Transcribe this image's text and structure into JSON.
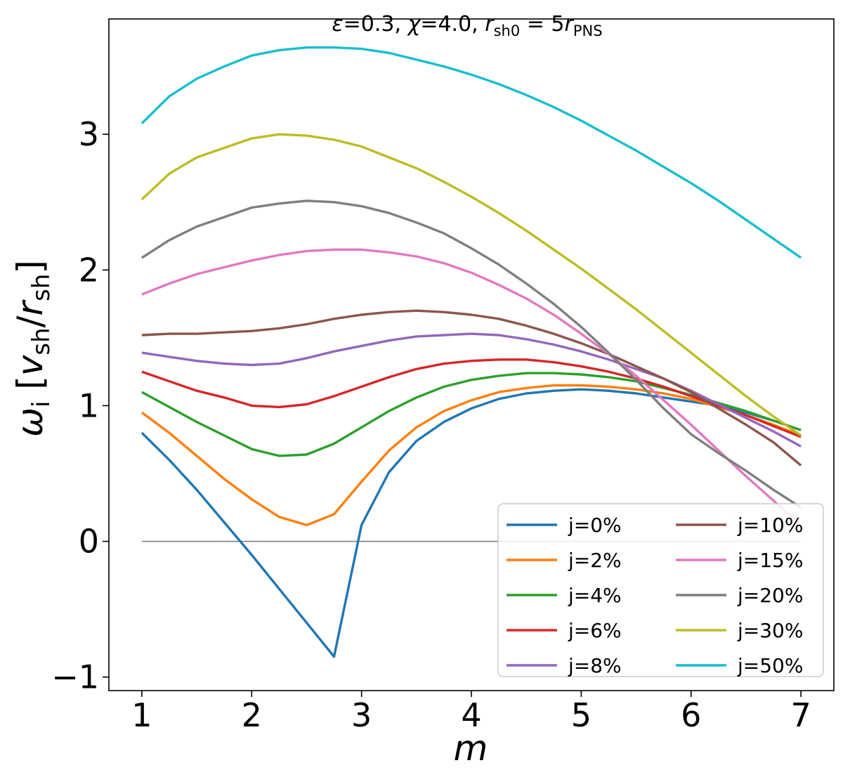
{
  "chart_data": {
    "type": "line",
    "title": "ε=0.3, χ=4.0, r_sh0 = 5r_PNS",
    "title_parts": {
      "eps": "ε",
      "eps_val": "=0.3, ",
      "chi": "χ",
      "chi_val": "=4.0, ",
      "r": "r",
      "sh0": "sh0",
      "eq": " = 5",
      "r2": "r",
      "pns": "PNS"
    },
    "xlabel": "m",
    "ylabel": "ω_i [v_sh/r_sh]",
    "ylabel_parts": {
      "omega": "ω",
      "i": "i",
      "open": " [",
      "v": "v",
      "sh1": "sh",
      "slash": "/",
      "r": "r",
      "sh2": "sh",
      "close": "]"
    },
    "xlim": [
      0.7,
      7.3
    ],
    "ylim": [
      -1.1,
      3.85
    ],
    "xticks": [
      1,
      2,
      3,
      4,
      5,
      6,
      7
    ],
    "xtick_labels": [
      "1",
      "2",
      "3",
      "4",
      "5",
      "6",
      "7"
    ],
    "yticks": [
      -1,
      0,
      1,
      2,
      3
    ],
    "ytick_labels": [
      "−1",
      "0",
      "1",
      "2",
      "3"
    ],
    "grid": false,
    "legend_position": "bottom-right",
    "legend_columns": 2,
    "reference_line": {
      "y": 0,
      "x_range": [
        1,
        7
      ],
      "color": "#808080"
    },
    "x": [
      1,
      1.25,
      1.5,
      1.75,
      2,
      2.25,
      2.5,
      2.75,
      3,
      3.25,
      3.5,
      3.75,
      4,
      4.25,
      4.5,
      4.75,
      5,
      5.25,
      5.5,
      5.75,
      6,
      6.25,
      6.5,
      6.75,
      7
    ],
    "series": [
      {
        "name": "j=0%",
        "color": "#1f77b4",
        "values": [
          0.8,
          0.6,
          0.38,
          0.14,
          -0.1,
          -0.35,
          -0.6,
          -0.85,
          0.12,
          0.51,
          0.74,
          0.88,
          0.98,
          1.05,
          1.09,
          1.11,
          1.12,
          1.11,
          1.09,
          1.06,
          1.03,
          1.0,
          0.95,
          0.89,
          0.82
        ]
      },
      {
        "name": "j=2%",
        "color": "#ff7f0e",
        "values": [
          0.95,
          0.8,
          0.63,
          0.46,
          0.31,
          0.18,
          0.12,
          0.2,
          0.44,
          0.67,
          0.84,
          0.96,
          1.04,
          1.1,
          1.13,
          1.15,
          1.15,
          1.14,
          1.12,
          1.09,
          1.05,
          0.99,
          0.93,
          0.86,
          0.78
        ]
      },
      {
        "name": "j=4%",
        "color": "#2ca02c",
        "values": [
          1.1,
          0.99,
          0.88,
          0.78,
          0.68,
          0.63,
          0.64,
          0.72,
          0.84,
          0.96,
          1.06,
          1.14,
          1.19,
          1.22,
          1.24,
          1.24,
          1.23,
          1.21,
          1.18,
          1.13,
          1.08,
          1.02,
          0.96,
          0.89,
          0.82
        ]
      },
      {
        "name": "j=6%",
        "color": "#d62728",
        "values": [
          1.25,
          1.18,
          1.11,
          1.06,
          1.0,
          0.99,
          1.01,
          1.07,
          1.14,
          1.21,
          1.27,
          1.31,
          1.33,
          1.34,
          1.34,
          1.32,
          1.29,
          1.25,
          1.2,
          1.14,
          1.07,
          1.0,
          0.93,
          0.85,
          0.77
        ]
      },
      {
        "name": "j=8%",
        "color": "#9467bd",
        "values": [
          1.39,
          1.36,
          1.33,
          1.31,
          1.3,
          1.31,
          1.35,
          1.4,
          1.44,
          1.48,
          1.51,
          1.52,
          1.53,
          1.52,
          1.49,
          1.45,
          1.4,
          1.34,
          1.27,
          1.2,
          1.11,
          1.01,
          0.91,
          0.81,
          0.7
        ]
      },
      {
        "name": "j=10%",
        "color": "#8c564b",
        "values": [
          1.52,
          1.53,
          1.53,
          1.54,
          1.55,
          1.57,
          1.6,
          1.64,
          1.67,
          1.69,
          1.7,
          1.69,
          1.67,
          1.64,
          1.59,
          1.53,
          1.46,
          1.38,
          1.29,
          1.2,
          1.1,
          0.98,
          0.86,
          0.73,
          0.56
        ]
      },
      {
        "name": "j=15%",
        "color": "#e377c2",
        "values": [
          1.82,
          1.9,
          1.97,
          2.02,
          2.07,
          2.11,
          2.14,
          2.15,
          2.15,
          2.13,
          2.1,
          2.05,
          1.98,
          1.89,
          1.79,
          1.67,
          1.53,
          1.38,
          1.22,
          1.04,
          0.86,
          0.67,
          0.48,
          0.3,
          0.12
        ]
      },
      {
        "name": "j=20%",
        "color": "#7f7f7f",
        "values": [
          2.09,
          2.22,
          2.32,
          2.39,
          2.46,
          2.49,
          2.51,
          2.5,
          2.47,
          2.42,
          2.35,
          2.27,
          2.16,
          2.04,
          1.9,
          1.75,
          1.58,
          1.39,
          1.19,
          0.98,
          0.79,
          0.65,
          0.52,
          0.38,
          0.25
        ]
      },
      {
        "name": "j=30%",
        "color": "#bcbd22",
        "values": [
          2.52,
          2.71,
          2.83,
          2.9,
          2.97,
          3.0,
          2.99,
          2.96,
          2.91,
          2.83,
          2.75,
          2.65,
          2.54,
          2.42,
          2.29,
          2.15,
          2.01,
          1.86,
          1.71,
          1.55,
          1.39,
          1.23,
          1.07,
          0.92,
          0.78
        ]
      },
      {
        "name": "j=50%",
        "color": "#17becf",
        "values": [
          3.08,
          3.28,
          3.41,
          3.5,
          3.58,
          3.62,
          3.64,
          3.64,
          3.63,
          3.6,
          3.55,
          3.5,
          3.44,
          3.37,
          3.29,
          3.2,
          3.1,
          2.99,
          2.88,
          2.76,
          2.64,
          2.51,
          2.37,
          2.23,
          2.09
        ]
      }
    ]
  }
}
